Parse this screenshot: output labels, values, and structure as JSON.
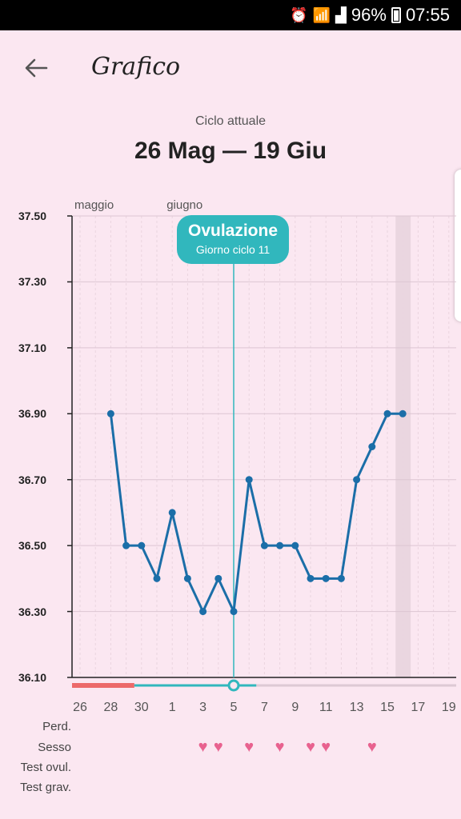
{
  "status": {
    "battery": "96%",
    "time": "07:55"
  },
  "app_bar": {
    "title": "Grafico"
  },
  "header": {
    "cycle_label": "Ciclo attuale",
    "cycle_range": "26 Mag — 19 Giu"
  },
  "ovulation": {
    "title": "Ovulazione",
    "subtitle": "Giorno ciclo 11",
    "day": 11
  },
  "rows": {
    "period": "Perd.",
    "sex": "Sesso",
    "ovulation_test": "Test ovul.",
    "pregnancy_test": "Test grav."
  },
  "sex_days": [
    9,
    10,
    12,
    14,
    16,
    17,
    20
  ],
  "period_days_count": 5,
  "current_day": 11,
  "highlight_day": 22,
  "chart_data": {
    "type": "line",
    "title": "",
    "xlabel": "",
    "ylabel": "",
    "months": [
      {
        "label": "maggio",
        "day": 1
      },
      {
        "label": "giugno",
        "day": 7
      }
    ],
    "x_tick_labels": [
      "26",
      "28",
      "30",
      "1",
      "3",
      "5",
      "7",
      "9",
      "11",
      "13",
      "15",
      "17",
      "19"
    ],
    "y_ticks": [
      "36.10",
      "36.30",
      "36.50",
      "36.70",
      "36.90",
      "37.10",
      "37.30",
      "37.50"
    ],
    "ylim": [
      36.1,
      37.5
    ],
    "days": 25,
    "x": [
      "28 Mag",
      "29 Mag",
      "30 Mag",
      "31 Mag",
      "1 Giu",
      "2 Giu",
      "3 Giu",
      "4 Giu",
      "5 Giu",
      "6 Giu",
      "7 Giu",
      "8 Giu",
      "9 Giu",
      "10 Giu",
      "11 Giu",
      "12 Giu",
      "13 Giu",
      "14 Giu",
      "15 Giu",
      "16 Giu"
    ],
    "cycle_days": [
      3,
      4,
      5,
      6,
      7,
      8,
      9,
      10,
      11,
      12,
      13,
      14,
      15,
      16,
      17,
      18,
      19,
      20,
      21,
      22
    ],
    "values": [
      36.9,
      36.5,
      36.5,
      36.4,
      36.6,
      36.4,
      36.3,
      36.4,
      36.3,
      36.7,
      36.5,
      36.5,
      36.5,
      36.4,
      36.4,
      36.4,
      36.7,
      36.8,
      36.9,
      36.9
    ],
    "grid": true,
    "legend": "none",
    "colors": {
      "line": "#1b6ea8",
      "ovulation": "#31b7bd",
      "period": "#ec6a6a",
      "grid": "#ead4df"
    }
  }
}
